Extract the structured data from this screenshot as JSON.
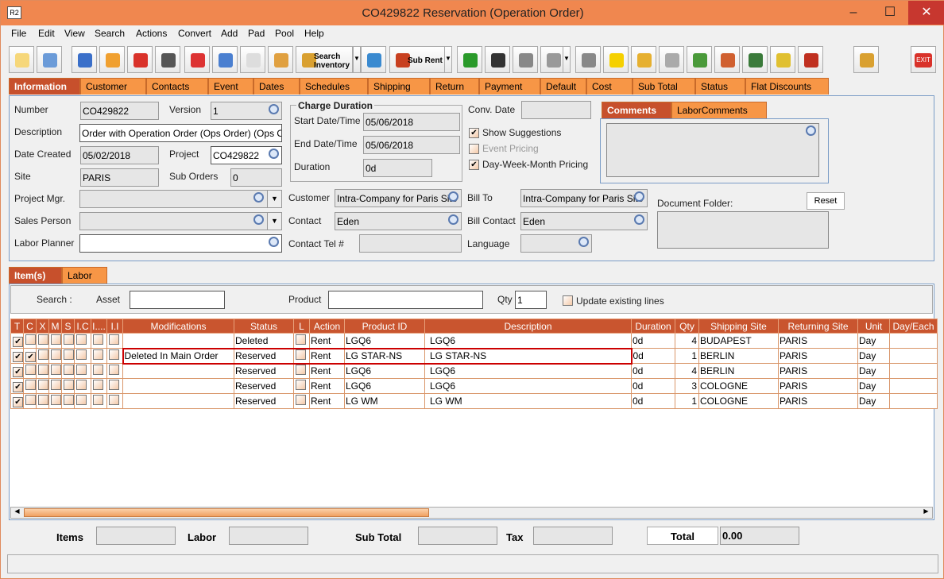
{
  "window": {
    "title": "CO429822 Reservation (Operation Order)",
    "logo": "R2",
    "minimize": "–",
    "maximize": "☐",
    "close": "✕"
  },
  "menu": [
    "File",
    "Edit",
    "View",
    "Search",
    "Actions",
    "Convert",
    "Add",
    "Pad",
    "Pool",
    "Help"
  ],
  "toolbar": {
    "search_inventory": "Search Inventory",
    "sub_rent": "Sub Rent",
    "exit": "EXIT"
  },
  "tabs": [
    "Information",
    "Customer",
    "Contacts",
    "Event",
    "Dates",
    "Schedules",
    "Shipping",
    "Return",
    "Payment",
    "Default",
    "Cost",
    "Sub Total",
    "Status",
    "Flat Discounts"
  ],
  "info": {
    "number_label": "Number",
    "number": "CO429822",
    "version_label": "Version",
    "version": "1",
    "description_label": "Description",
    "description": "Order with Operation Order (Ops Order) (Ops O",
    "date_created_label": "Date Created",
    "date_created": "05/02/2018",
    "project_label": "Project",
    "project": "CO429822",
    "site_label": "Site",
    "site": "PARIS",
    "sub_orders_label": "Sub Orders",
    "sub_orders": "0",
    "project_mgr_label": "Project Mgr.",
    "sales_person_label": "Sales Person",
    "labor_planner_label": "Labor Planner",
    "charge_duration_title": "Charge Duration",
    "start_label": "Start Date/Time",
    "start": "05/06/2018",
    "end_label": "End Date/Time",
    "end": "05/06/2018",
    "duration_label": "Duration",
    "duration": "0d",
    "conv_date_label": "Conv. Date",
    "show_suggestions": "Show Suggestions",
    "event_pricing": "Event Pricing",
    "dwm_pricing": "Day-Week-Month Pricing",
    "customer_label": "Customer",
    "customer": "Intra-Company for Paris Site",
    "contact_label": "Contact",
    "contact": "Eden",
    "contact_tel_label": "Contact Tel #",
    "bill_to_label": "Bill To",
    "bill_to": "Intra-Company for Paris Site",
    "bill_contact_label": "Bill Contact",
    "bill_contact": "Eden",
    "language_label": "Language",
    "comments_tab": "Comments",
    "labor_comments_tab": "LaborComments",
    "document_folder_label": "Document Folder:",
    "reset": "Reset"
  },
  "items_tabs": [
    "Item(s)",
    "Labor"
  ],
  "search": {
    "label": "Search :",
    "asset_label": "Asset",
    "product_label": "Product",
    "qty_label": "Qty",
    "qty": "1",
    "update_lines": "Update existing lines"
  },
  "columns": [
    "T",
    "C",
    "X",
    "M",
    "S",
    "I.C",
    "I....",
    "I.I",
    "Modifications",
    "Status",
    "L",
    "Action",
    "Product ID",
    "Description",
    "Duration",
    "Qty",
    "Shipping Site",
    "Returning Site",
    "Unit",
    "Day/Each"
  ],
  "rows": [
    {
      "T": true,
      "C": false,
      "mod": "",
      "status": "Deleted",
      "action": "Rent",
      "pid": "LGQ6",
      "desc": "LGQ6",
      "dur": "0d",
      "qty": "4",
      "ship": "BUDAPEST",
      "ret": "PARIS",
      "unit": "Day",
      "de": ""
    },
    {
      "T": true,
      "C": true,
      "mod": "Deleted In Main Order",
      "status": "Reserved",
      "action": "Rent",
      "pid": "LG STAR-NS",
      "desc": "LG STAR-NS",
      "dur": "0d",
      "qty": "1",
      "ship": "BERLIN",
      "ret": "PARIS",
      "unit": "Day",
      "de": ""
    },
    {
      "T": true,
      "C": false,
      "mod": "",
      "status": "Reserved",
      "action": "Rent",
      "pid": "LGQ6",
      "desc": "LGQ6",
      "dur": "0d",
      "qty": "4",
      "ship": "BERLIN",
      "ret": "PARIS",
      "unit": "Day",
      "de": ""
    },
    {
      "T": true,
      "C": false,
      "mod": "",
      "status": "Reserved",
      "action": "Rent",
      "pid": "LGQ6",
      "desc": "LGQ6",
      "dur": "0d",
      "qty": "3",
      "ship": "COLOGNE",
      "ret": "PARIS",
      "unit": "Day",
      "de": ""
    },
    {
      "T": true,
      "C": false,
      "mod": "",
      "status": "Reserved",
      "action": "Rent",
      "pid": "LG WM",
      "desc": "LG WM",
      "dur": "0d",
      "qty": "1",
      "ship": "COLOGNE",
      "ret": "PARIS",
      "unit": "Day",
      "de": ""
    }
  ],
  "totals": {
    "items_label": "Items",
    "labor_label": "Labor",
    "sub_total_label": "Sub Total",
    "tax_label": "Tax",
    "total_label": "Total",
    "total": "0.00"
  }
}
